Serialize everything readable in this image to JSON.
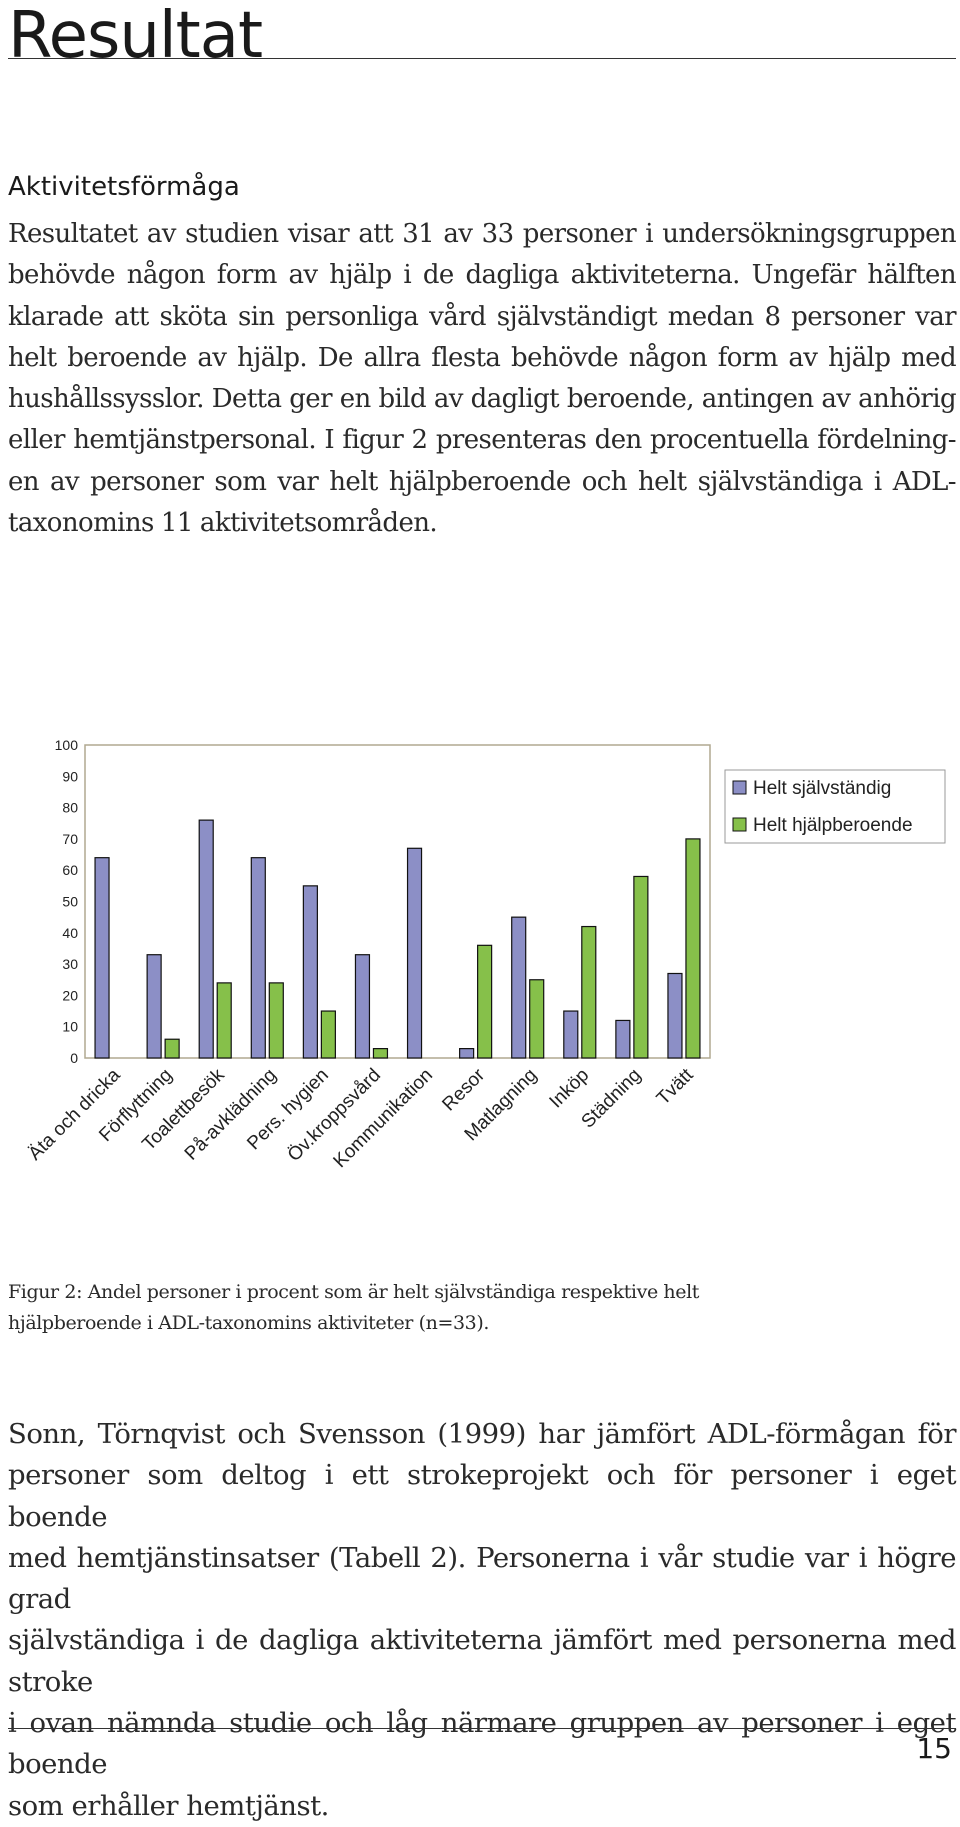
{
  "page": {
    "title": "Resultat",
    "section_heading": "Aktivitetsförmåga",
    "paragraph1_lines": [
      "Resultatet av studien visar att 31 av 33 personer i undersökningsgruppen",
      "behövde någon form av hjälp i de dagliga aktiviteterna. Ungefär hälften",
      "klarade att sköta sin personliga vård självständigt medan 8 personer var",
      "helt beroende av hjälp. De allra flesta behövde någon form av hjälp med",
      "hushållssysslor. Detta ger en bild av dagligt beroende, antingen av anhörig",
      "eller hemtjänstpersonal. I figur 2 presenteras den procentuella fördelning-",
      "en av personer som var helt hjälpberoende och helt självständiga i ADL-",
      "taxonomins 11 aktivitetsområden."
    ],
    "caption_lines": [
      "Figur 2: Andel personer i procent som är helt självständiga respektive helt",
      "hjälpberoende i  ADL-taxonomins aktiviteter (n=33)."
    ],
    "paragraph2_lines": [
      "Sonn, Törnqvist och Svensson (1999) har jämfört ADL-förmågan för",
      "personer som deltog i ett strokeprojekt och för personer i eget boende",
      "med hemtjänstinsatser (Tabell 2). Personerna i vår studie var i högre grad",
      "självständiga i de dagliga aktiviteterna jämfört med personerna med stroke",
      "i ovan nämnda studie och låg närmare gruppen av personer i eget boende",
      "som erhåller hemtjänst."
    ],
    "page_number": "15"
  },
  "chart_data": {
    "type": "bar",
    "categories": [
      "Äta och dricka",
      "Förflyttning",
      "Toalettbesök",
      "På-avklädning",
      "Pers. hygien",
      "Öv.kroppsvård",
      "Kommunikation",
      "Resor",
      "Matlagning",
      "Inköp",
      "Städning",
      "Tvätt"
    ],
    "series": [
      {
        "name": "Helt självständig",
        "color": "#8c8fc6",
        "values": [
          64,
          33,
          76,
          64,
          55,
          33,
          67,
          3,
          45,
          15,
          12,
          27
        ]
      },
      {
        "name": "Helt hjälpberoende",
        "color": "#86c04a",
        "values": [
          0,
          6,
          24,
          24,
          15,
          3,
          0,
          36,
          25,
          42,
          58,
          70
        ]
      }
    ],
    "ylim": [
      0,
      100
    ],
    "yticks": [
      "0",
      "10",
      "20",
      "30",
      "40",
      "50",
      "60",
      "70",
      "80",
      "90",
      "100"
    ],
    "grid": false,
    "legend": "right",
    "plot_background": "#ffffff",
    "plot_border": "#b0a890"
  }
}
